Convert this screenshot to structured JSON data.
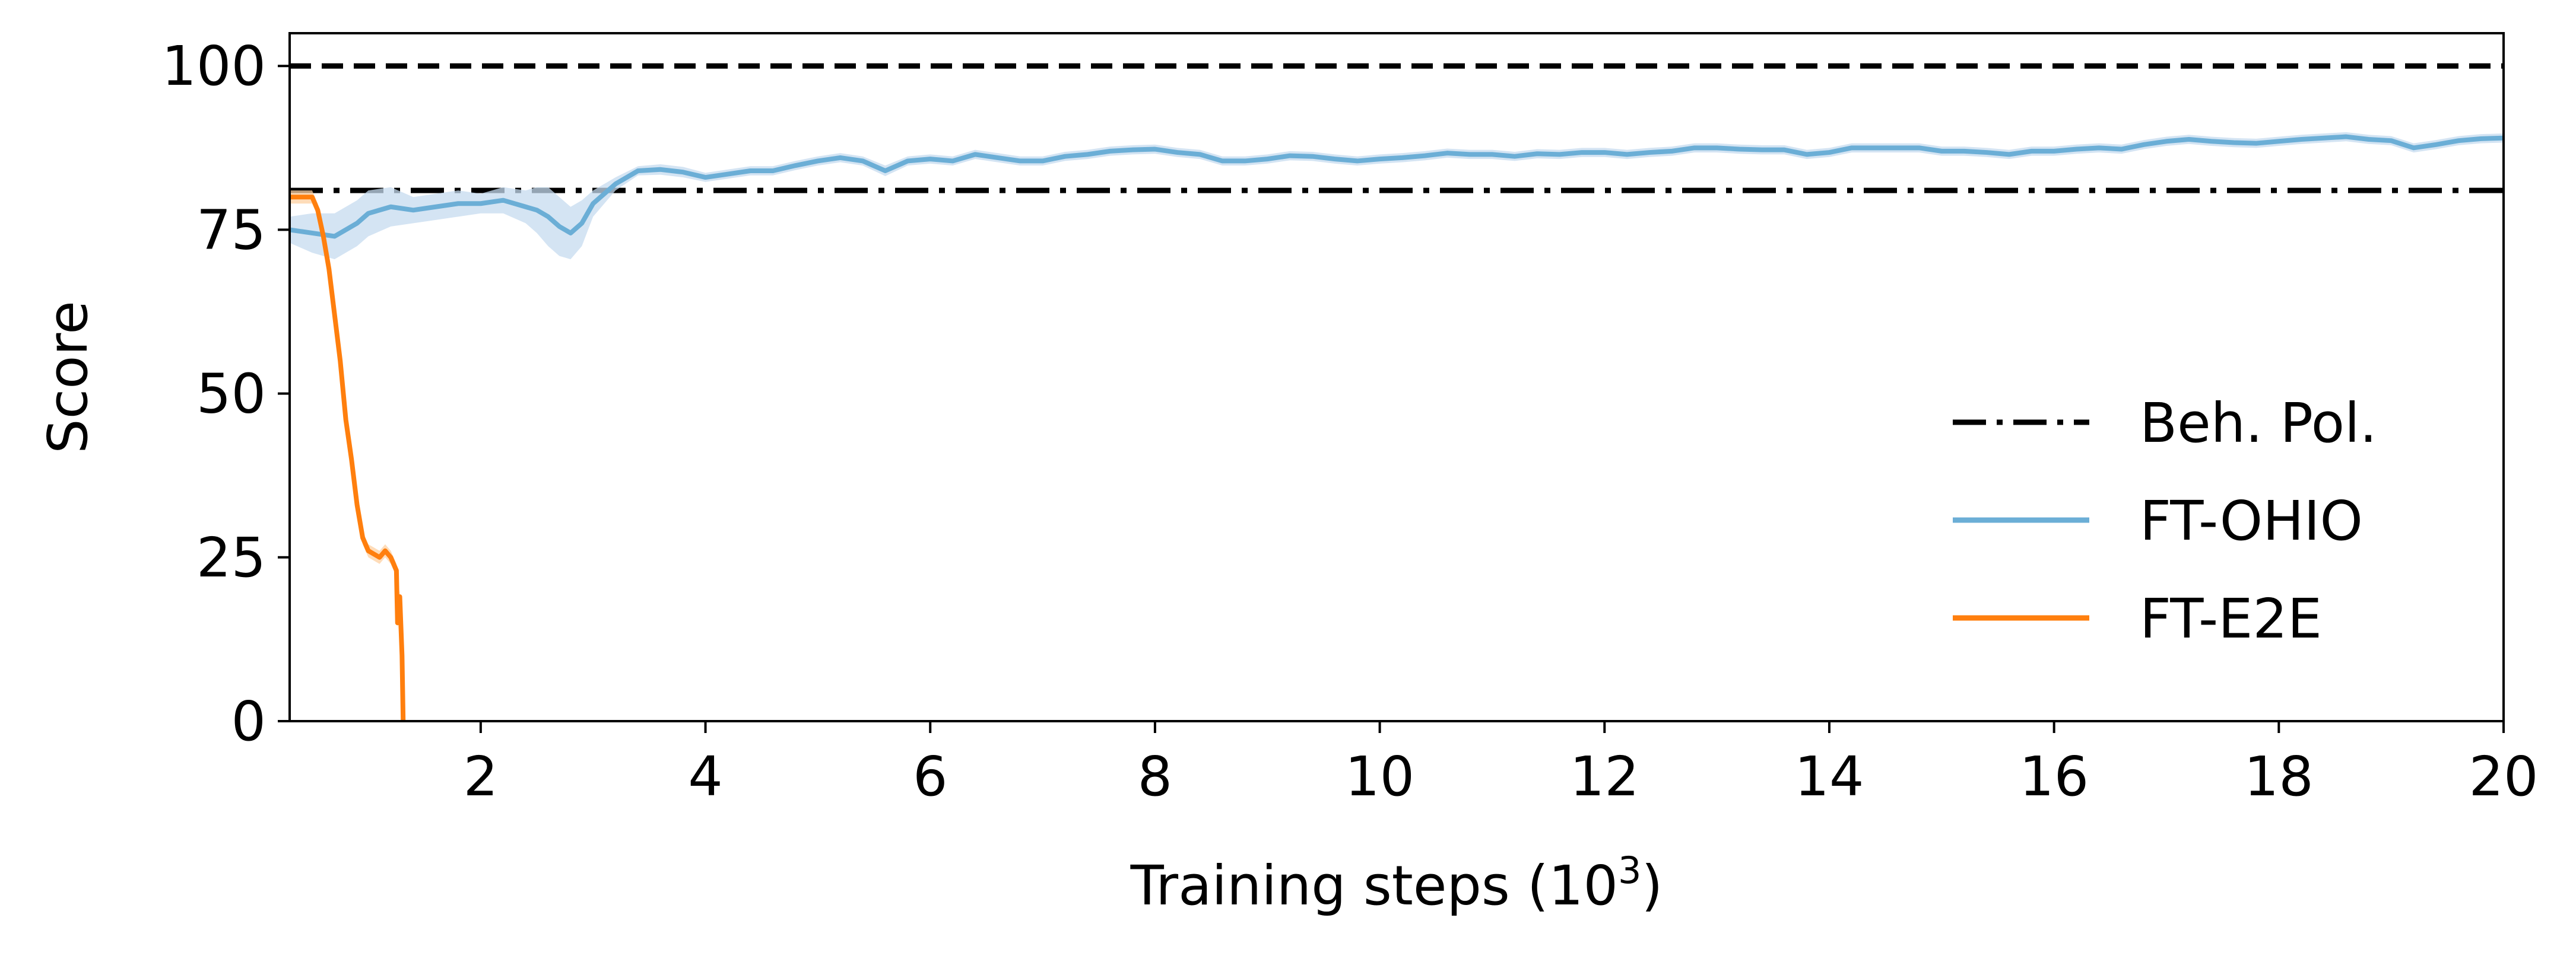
{
  "chart_data": {
    "type": "line",
    "xlabel": "Training steps (10",
    "xlabel_sup": "3",
    "xlabel_close": ")",
    "ylabel": "Score",
    "xlim": [
      0.3,
      20
    ],
    "ylim": [
      0,
      105
    ],
    "xticks": [
      2,
      4,
      6,
      8,
      10,
      12,
      14,
      16,
      18,
      20
    ],
    "xtick_labels": [
      "2",
      "4",
      "6",
      "8",
      "10",
      "12",
      "14",
      "16",
      "18",
      "20"
    ],
    "yticks": [
      0,
      25,
      50,
      75,
      100
    ],
    "ytick_labels": [
      "0",
      "25",
      "50",
      "75",
      "100"
    ],
    "grid": false,
    "legend_placement": "lower-right",
    "reference_lines": [
      {
        "name": "",
        "y": 100,
        "style": "dashed",
        "color": "#000000"
      },
      {
        "name": "Beh. Pol.",
        "y": 81,
        "style": "dashdot",
        "color": "#000000"
      }
    ],
    "series": [
      {
        "name": "FT-OHIO",
        "color": "#6baed6",
        "band_color": "#c6dbef",
        "x": [
          0.3,
          0.5,
          0.7,
          0.9,
          1.0,
          1.2,
          1.4,
          1.6,
          1.8,
          2.0,
          2.2,
          2.4,
          2.5,
          2.6,
          2.7,
          2.8,
          2.9,
          3.0,
          3.2,
          3.4,
          3.6,
          3.8,
          4.0,
          4.2,
          4.4,
          4.6,
          4.8,
          5.0,
          5.2,
          5.4,
          5.6,
          5.8,
          6.0,
          6.2,
          6.4,
          6.6,
          6.8,
          7.0,
          7.2,
          7.4,
          7.6,
          7.8,
          8.0,
          8.2,
          8.4,
          8.6,
          8.8,
          9.0,
          9.2,
          9.4,
          9.6,
          9.8,
          10.0,
          10.2,
          10.4,
          10.6,
          10.8,
          11.0,
          11.2,
          11.4,
          11.6,
          11.8,
          12.0,
          12.2,
          12.4,
          12.6,
          12.8,
          13.0,
          13.2,
          13.4,
          13.6,
          13.8,
          14.0,
          14.2,
          14.4,
          14.6,
          14.8,
          15.0,
          15.2,
          15.4,
          15.6,
          15.8,
          16.0,
          16.2,
          16.4,
          16.6,
          16.8,
          17.0,
          17.2,
          17.4,
          17.6,
          17.8,
          18.0,
          18.2,
          18.4,
          18.6,
          18.8,
          19.0,
          19.2,
          19.4,
          19.6,
          19.8,
          20.0
        ],
        "values": [
          75,
          74.5,
          74,
          76,
          77.5,
          78.5,
          78,
          78.5,
          79,
          79,
          79.5,
          78.5,
          78,
          77,
          75.5,
          74.5,
          76,
          79,
          82,
          84,
          84.2,
          83.8,
          83,
          83.5,
          84,
          84,
          84.8,
          85.5,
          86,
          85.5,
          84,
          85.5,
          85.8,
          85.5,
          86.5,
          86,
          85.5,
          85.5,
          86.2,
          86.5,
          87,
          87.2,
          87.3,
          86.8,
          86.5,
          85.5,
          85.5,
          85.8,
          86.3,
          86.2,
          85.8,
          85.5,
          85.8,
          86,
          86.3,
          86.7,
          86.5,
          86.5,
          86.2,
          86.6,
          86.5,
          86.8,
          86.8,
          86.5,
          86.8,
          87,
          87.5,
          87.5,
          87.3,
          87.2,
          87.2,
          86.5,
          86.8,
          87.5,
          87.5,
          87.5,
          87.5,
          87,
          87,
          86.8,
          86.5,
          87,
          87,
          87.3,
          87.5,
          87.3,
          88,
          88.5,
          88.8,
          88.5,
          88.3,
          88.2,
          88.5,
          88.8,
          89,
          89.2,
          88.8,
          88.6,
          87.5,
          88,
          88.6,
          88.9,
          89
        ],
        "band_lower": [
          73,
          71.5,
          70.5,
          72.5,
          74,
          75.5,
          76,
          76.5,
          77,
          77.5,
          77.5,
          76,
          74.5,
          72.5,
          71,
          70.5,
          72.5,
          77,
          81,
          83.3,
          83.4,
          83,
          82.3,
          82.8,
          83.3,
          83.3,
          84.1,
          84.8,
          85.3,
          84.8,
          83.2,
          84.8,
          85.1,
          84.8,
          85.8,
          85.3,
          84.8,
          84.8,
          85.5,
          85.8,
          86.3,
          86.5,
          86.6,
          86.1,
          85.8,
          84.8,
          84.8,
          85.1,
          85.6,
          85.5,
          85.1,
          84.8,
          85.1,
          85.3,
          85.6,
          86,
          85.8,
          85.8,
          85.5,
          85.9,
          85.8,
          86.1,
          86.1,
          85.8,
          86.1,
          86.3,
          86.8,
          86.8,
          86.6,
          86.5,
          86.5,
          85.8,
          86.1,
          86.8,
          86.8,
          86.8,
          86.8,
          86.3,
          86.3,
          86.1,
          85.8,
          86.3,
          86.3,
          86.6,
          86.8,
          86.6,
          87.3,
          87.8,
          88.1,
          87.8,
          87.6,
          87.5,
          87.8,
          88.1,
          88.3,
          88.5,
          88.1,
          87.9,
          86.8,
          87.3,
          87.9,
          88.2,
          88.3
        ],
        "band_upper": [
          77,
          77.5,
          77.5,
          79.5,
          81,
          81.5,
          80,
          80.5,
          81,
          80.5,
          81.5,
          81,
          81.5,
          81.5,
          80,
          78.5,
          79.5,
          81,
          83,
          84.7,
          85,
          84.6,
          83.7,
          84.2,
          84.7,
          84.7,
          85.5,
          86.2,
          86.7,
          86.2,
          84.8,
          86.2,
          86.5,
          86.2,
          87.2,
          86.7,
          86.2,
          86.2,
          86.9,
          87.2,
          87.7,
          87.9,
          88,
          87.5,
          87.2,
          86.2,
          86.2,
          86.5,
          87,
          86.9,
          86.5,
          86.2,
          86.5,
          86.7,
          87,
          87.4,
          87.2,
          87.2,
          86.9,
          87.3,
          87.2,
          87.5,
          87.5,
          87.2,
          87.5,
          87.7,
          88.2,
          88.2,
          88,
          87.9,
          87.9,
          87.2,
          87.5,
          88.2,
          88.2,
          88.2,
          88.2,
          87.7,
          87.7,
          87.5,
          87.2,
          87.7,
          87.7,
          88,
          88.2,
          88,
          88.7,
          89.2,
          89.5,
          89.2,
          89,
          88.9,
          89.2,
          89.5,
          89.7,
          89.9,
          89.5,
          89.3,
          88.2,
          88.7,
          89.3,
          89.6,
          89.7
        ]
      },
      {
        "name": "FT-E2E",
        "color": "#ff7f0e",
        "band_color": "#fdd0a2",
        "x": [
          0.3,
          0.45,
          0.5,
          0.55,
          0.6,
          0.65,
          0.7,
          0.75,
          0.8,
          0.85,
          0.9,
          0.95,
          1.0,
          1.05,
          1.1,
          1.15,
          1.2,
          1.25,
          1.26,
          1.28,
          1.3,
          1.31
        ],
        "values": [
          80,
          80,
          80,
          78,
          74,
          69,
          62,
          55,
          46,
          40,
          33,
          28,
          26,
          25.5,
          25,
          26,
          25,
          23,
          15,
          19,
          10,
          0
        ],
        "band_lower": [
          79,
          79,
          79,
          77,
          73,
          68,
          61,
          54,
          45,
          39,
          32,
          27,
          25,
          24.5,
          24,
          25,
          24,
          22,
          14,
          18,
          9,
          0
        ],
        "band_upper": [
          81,
          81,
          81,
          79,
          75,
          70,
          63,
          56,
          47,
          41,
          34,
          29,
          27,
          26.5,
          26,
          27,
          26,
          24,
          16,
          20,
          11,
          0
        ]
      }
    ]
  }
}
